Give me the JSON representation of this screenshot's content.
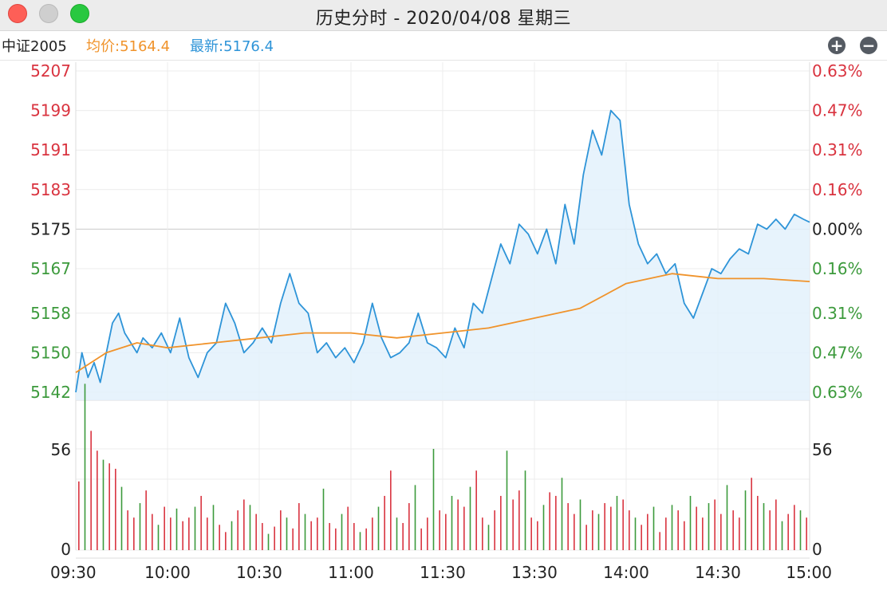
{
  "window": {
    "title": "历史分时 - 2020/04/08 星期三"
  },
  "info": {
    "name": "中证2005",
    "avg_label": "均价:5164.4",
    "last_label": "最新:5176.4"
  },
  "controls": {
    "zoom_in": "+",
    "zoom_out": "−"
  },
  "colors": {
    "up": "#d9333f",
    "down": "#3c9a3c",
    "price_line": "#2e94d8",
    "avg_line": "#f0932b",
    "fill": "#e3f1fb"
  },
  "chart_data": {
    "type": "line",
    "prev_close": 5175,
    "price_axis": {
      "left_ticks": [
        "5207",
        "5199",
        "5191",
        "5183",
        "5175",
        "5167",
        "5158",
        "5150",
        "5142"
      ],
      "tick_values": [
        5207,
        5199,
        5191,
        5183,
        5175,
        5167,
        5158,
        5150,
        5142
      ],
      "right_ticks": [
        "0.63%",
        "0.47%",
        "0.31%",
        "0.16%",
        "0.00%",
        "0.16%",
        "0.31%",
        "0.47%",
        "0.63%"
      ],
      "ylim": [
        5142,
        5207
      ]
    },
    "volume_axis": {
      "ticks": [
        "56",
        "0"
      ],
      "tick_values": [
        56,
        0
      ]
    },
    "time_labels": [
      "09:30",
      "10:00",
      "10:30",
      "11:00",
      "11:30",
      "13:30",
      "14:00",
      "14:30",
      "15:00"
    ],
    "series": [
      {
        "name": "最新",
        "x_minutes": [
          0,
          2,
          4,
          6,
          8,
          10,
          12,
          14,
          16,
          18,
          20,
          22,
          25,
          28,
          31,
          34,
          37,
          40,
          43,
          46,
          49,
          52,
          55,
          58,
          61,
          64,
          67,
          70,
          73,
          76,
          79,
          82,
          85,
          88,
          91,
          94,
          97,
          100,
          103,
          106,
          109,
          112,
          115,
          118,
          121,
          124,
          127,
          130,
          133,
          136,
          139,
          142,
          145,
          148,
          151,
          154,
          157,
          160,
          163,
          166,
          169,
          172,
          175,
          178,
          181,
          184,
          187,
          190,
          193,
          196,
          199,
          202,
          205,
          208,
          211,
          214,
          217,
          220,
          223,
          226,
          229,
          232,
          235,
          238,
          240
        ],
        "values": [
          5142,
          5150,
          5145,
          5148,
          5144,
          5150,
          5156,
          5158,
          5154,
          5152,
          5150,
          5153,
          5151,
          5154,
          5150,
          5157,
          5149,
          5145,
          5150,
          5152,
          5160,
          5156,
          5150,
          5152,
          5155,
          5152,
          5160,
          5166,
          5160,
          5158,
          5150,
          5152,
          5149,
          5151,
          5148,
          5152,
          5160,
          5153,
          5149,
          5150,
          5152,
          5158,
          5152,
          5151,
          5149,
          5155,
          5151,
          5160,
          5158,
          5165,
          5172,
          5168,
          5176,
          5174,
          5170,
          5175,
          5168,
          5180,
          5172,
          5186,
          5195,
          5190,
          5199,
          5197,
          5180,
          5172,
          5168,
          5170,
          5166,
          5168,
          5160,
          5157,
          5162,
          5167,
          5166,
          5169,
          5171,
          5170,
          5176,
          5175,
          5177,
          5175,
          5178,
          5177,
          5176.4
        ]
      },
      {
        "name": "均价",
        "x_minutes": [
          0,
          5,
          10,
          20,
          30,
          45,
          60,
          75,
          90,
          105,
          120,
          135,
          150,
          165,
          180,
          195,
          210,
          225,
          240
        ],
        "values": [
          5146,
          5148,
          5150,
          5152,
          5151,
          5152,
          5153,
          5154,
          5154,
          5153,
          5154,
          5155,
          5157,
          5159,
          5164,
          5166,
          5165,
          5165,
          5164.4
        ]
      }
    ],
    "volume": [
      38,
      92,
      66,
      55,
      50,
      48,
      45,
      35,
      22,
      18,
      26,
      33,
      20,
      14,
      24,
      18,
      23,
      16,
      18,
      24,
      30,
      18,
      25,
      14,
      10,
      16,
      22,
      28,
      25,
      20,
      15,
      9,
      13,
      22,
      18,
      12,
      26,
      20,
      16,
      18,
      34,
      15,
      12,
      20,
      24,
      15,
      10,
      12,
      18,
      24,
      30,
      44,
      18,
      15,
      26,
      36,
      12,
      18,
      56,
      22,
      20,
      30,
      28,
      24,
      35,
      44,
      18,
      14,
      22,
      30,
      55,
      28,
      33,
      44,
      18,
      16,
      25,
      32,
      30,
      40,
      26,
      20,
      28,
      14,
      22,
      20,
      26,
      24,
      30,
      28,
      22,
      18,
      14,
      20,
      24,
      10,
      18,
      25,
      22,
      16,
      30,
      24,
      18,
      26,
      28,
      20,
      36,
      22,
      18,
      33,
      40,
      30,
      26,
      22,
      28,
      16,
      20,
      25,
      22,
      18
    ]
  }
}
